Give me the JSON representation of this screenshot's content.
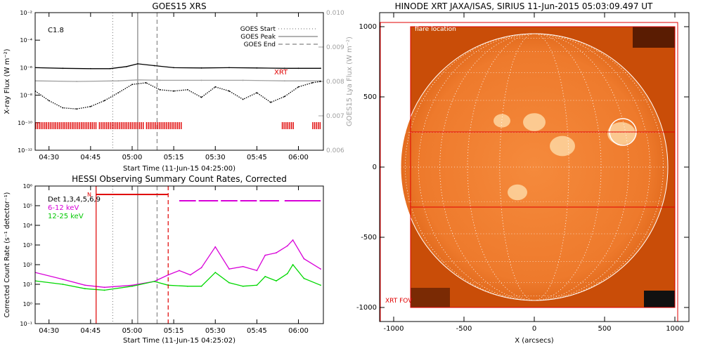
{
  "chart_data": [
    {
      "type": "line",
      "title": "GOES15 XRS",
      "xlabel": "Start Time (11-Jun-15 04:25:00)",
      "ylabel": "X-ray Flux (W m⁻²)",
      "y2label": "GOES15 Lya Flux (W m⁻²)",
      "y_scale": "log",
      "ylim": [
        1e-12,
        0.01
      ],
      "y2lim": [
        0.006,
        0.01
      ],
      "xticks": [
        "04:30",
        "04:45",
        "05:00",
        "05:15",
        "05:30",
        "05:45",
        "06:00"
      ],
      "yticks": [
        "10⁻¹²",
        "10⁻¹⁰",
        "10⁻⁸",
        "10⁻⁶",
        "10⁻⁴",
        "10⁻²"
      ],
      "y2ticks": [
        "0.006",
        "0.007",
        "0.008",
        "0.009",
        "0.010"
      ],
      "class_label": "C1.8",
      "annotation": "XRT",
      "legend": [
        "GOES Start",
        "GOES Peak",
        "GOES End"
      ],
      "legend_position": "top-right",
      "vlines": {
        "start": "04:53",
        "peak": "05:02",
        "end": "05:09"
      },
      "series": [
        {
          "name": "",
          "color": "#000000",
          "x": [
            "04:25",
            "04:35",
            "04:45",
            "04:52",
            "04:58",
            "05:02",
            "05:08",
            "05:15",
            "05:25",
            "05:35",
            "05:45",
            "05:55",
            "06:00",
            "06:08"
          ],
          "values": [
            1e-06,
            9e-07,
            8.5e-07,
            8.5e-07,
            1.2e-06,
            1.9e-06,
            1.4e-06,
            1e-06,
            9.5e-07,
            1e-06,
            9.5e-07,
            9e-07,
            9e-07,
            9e-07
          ]
        },
        {
          "name": "",
          "color": "#a0a0a0",
          "x": [
            "04:25",
            "04:40",
            "04:55",
            "05:02",
            "05:10",
            "05:25",
            "05:40",
            "05:55",
            "06:08"
          ],
          "values": [
            1.1e-07,
            1e-07,
            1.1e-07,
            1.3e-07,
            1.2e-07,
            1.2e-07,
            1.2e-07,
            1.1e-07,
            1.1e-07
          ]
        },
        {
          "name": "",
          "color": "#000000",
          "dotted": true,
          "x": [
            "04:25",
            "04:30",
            "04:35",
            "04:40",
            "04:45",
            "04:50",
            "04:55",
            "05:00",
            "05:05",
            "05:10",
            "05:15",
            "05:20",
            "05:25",
            "05:30",
            "05:35",
            "05:40",
            "05:45",
            "05:50",
            "05:55",
            "06:00",
            "06:05",
            "06:08"
          ],
          "values": [
            2e-08,
            4e-09,
            1.2e-09,
            1e-09,
            1.5e-09,
            4e-09,
            1.5e-08,
            6e-08,
            8e-08,
            2.5e-08,
            2e-08,
            2.5e-08,
            7e-09,
            4e-08,
            2e-08,
            5e-09,
            1.5e-08,
            3e-09,
            8e-09,
            4e-08,
            8e-08,
            1e-07
          ]
        }
      ],
      "xrt_observations": [
        "04:25-04:47",
        "04:48-05:04",
        "05:05-05:18",
        "05:54-05:58",
        "06:05-06:08"
      ]
    },
    {
      "type": "line",
      "title": "HESSI Observing Summary Count Rates, Corrected",
      "xlabel": "Start Time (11-Jun-15 04:25:02)",
      "ylabel": "Corrected Count Rate (s⁻¹ detector⁻¹)",
      "y_scale": "log",
      "ylim": [
        0.1,
        1000000.0
      ],
      "xticks": [
        "04:30",
        "04:45",
        "05:00",
        "05:15",
        "05:30",
        "05:45",
        "06:00"
      ],
      "yticks": [
        "10⁻¹",
        "10⁰",
        "10¹",
        "10²",
        "10³",
        "10⁴",
        "10⁵",
        "10⁶"
      ],
      "detectors_label": "Det 1,3,4,5,6,9",
      "night_label": "N",
      "vlines": {
        "start": "04:53",
        "peak": "05:02",
        "end": "05:09",
        "red_a": "04:47",
        "red_b": "05:13"
      },
      "night_bar": [
        "04:47",
        "05:13"
      ],
      "saa_bars": [
        "05:17-05:23",
        "05:24-05:31",
        "05:32-05:38",
        "05:39-05:45",
        "05:46-05:53",
        "05:55-06:08"
      ],
      "series": [
        {
          "name": "6-12 keV",
          "color": "#d800d8",
          "x": [
            "04:25",
            "04:35",
            "04:43",
            "04:50",
            "05:00",
            "05:08",
            "05:13",
            "05:17",
            "05:21",
            "05:25",
            "05:30",
            "05:35",
            "05:40",
            "05:45",
            "05:48",
            "05:52",
            "05:56",
            "05:58",
            "06:02",
            "06:08"
          ],
          "values": [
            40,
            18,
            9,
            7,
            9,
            14,
            30,
            50,
            30,
            70,
            800,
            60,
            80,
            50,
            300,
            400,
            900,
            1800,
            200,
            60
          ]
        },
        {
          "name": "12-25 keV",
          "color": "#00d800",
          "x": [
            "04:25",
            "04:35",
            "04:43",
            "04:50",
            "05:00",
            "05:08",
            "05:13",
            "05:20",
            "05:25",
            "05:30",
            "05:35",
            "05:40",
            "05:45",
            "05:48",
            "05:52",
            "05:56",
            "05:58",
            "06:02",
            "06:08"
          ],
          "values": [
            15,
            10,
            6,
            5,
            8,
            14,
            9,
            8,
            8,
            40,
            12,
            8,
            9,
            25,
            15,
            35,
            100,
            20,
            9
          ]
        }
      ]
    },
    {
      "type": "scatter",
      "title": "HINODE XRT JAXA/ISAS, SIRIUS 11-Jun-2015 05:03:09.497 UT",
      "xlabel": "X (arcsecs)",
      "ylabel": "",
      "xlim": [
        -1100,
        1100
      ],
      "ylim": [
        -1100,
        1100
      ],
      "xticks": [
        "-1000",
        "-500",
        "0",
        "500",
        "1000"
      ],
      "yticks": [
        "-1000",
        "-500",
        "0",
        "500",
        "1000"
      ],
      "flare_location_label": "flare location",
      "fov_label": "XRT FOV",
      "solar_radius": 950,
      "flare_location": {
        "x": 630,
        "y": 250
      },
      "bright_regions": [
        {
          "x": 0,
          "y": 320,
          "r": 80
        },
        {
          "x": 200,
          "y": 150,
          "r": 90
        },
        {
          "x": -120,
          "y": -180,
          "r": 70
        },
        {
          "x": -230,
          "y": 330,
          "r": 60
        },
        {
          "x": 620,
          "y": 240,
          "r": 100
        }
      ]
    }
  ]
}
